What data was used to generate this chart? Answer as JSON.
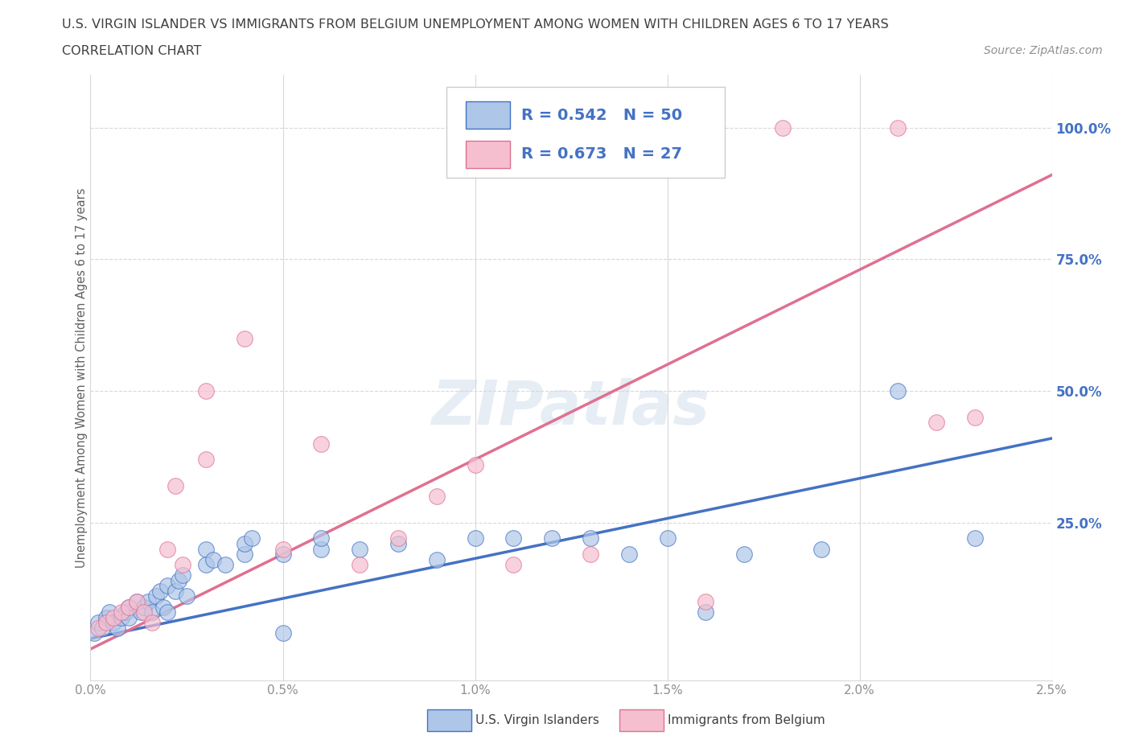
{
  "title_line1": "U.S. VIRGIN ISLANDER VS IMMIGRANTS FROM BELGIUM UNEMPLOYMENT AMONG WOMEN WITH CHILDREN AGES 6 TO 17 YEARS",
  "title_line2": "CORRELATION CHART",
  "source_text": "Source: ZipAtlas.com",
  "ylabel": "Unemployment Among Women with Children Ages 6 to 17 years",
  "xlim": [
    0.0,
    0.025
  ],
  "ylim": [
    -0.05,
    1.1
  ],
  "xtick_labels": [
    "0.0%",
    "0.5%",
    "1.0%",
    "1.5%",
    "2.0%",
    "2.5%"
  ],
  "xtick_values": [
    0.0,
    0.005,
    0.01,
    0.015,
    0.02,
    0.025
  ],
  "ytick_labels": [
    "25.0%",
    "50.0%",
    "75.0%",
    "100.0%"
  ],
  "ytick_values": [
    0.25,
    0.5,
    0.75,
    1.0
  ],
  "blue_color": "#aec6e8",
  "blue_line_color": "#4472c4",
  "pink_color": "#f5bfd0",
  "pink_line_color": "#e07090",
  "blue_R": "0.542",
  "blue_N": "50",
  "pink_R": "0.673",
  "pink_N": "27",
  "legend_label_blue": "U.S. Virgin Islanders",
  "legend_label_pink": "Immigrants from Belgium",
  "watermark": "ZIPatlas",
  "blue_scatter_x": [
    0.0001,
    0.0002,
    0.0003,
    0.0004,
    0.0005,
    0.0006,
    0.0007,
    0.0008,
    0.0009,
    0.001,
    0.001,
    0.0012,
    0.0013,
    0.0014,
    0.0015,
    0.0016,
    0.0017,
    0.0018,
    0.0019,
    0.002,
    0.002,
    0.0022,
    0.0023,
    0.0024,
    0.0025,
    0.003,
    0.003,
    0.0032,
    0.0035,
    0.004,
    0.004,
    0.0042,
    0.005,
    0.005,
    0.006,
    0.006,
    0.007,
    0.008,
    0.009,
    0.01,
    0.011,
    0.012,
    0.013,
    0.014,
    0.015,
    0.016,
    0.017,
    0.019,
    0.021,
    0.023
  ],
  "blue_scatter_y": [
    0.04,
    0.06,
    0.05,
    0.07,
    0.08,
    0.06,
    0.05,
    0.07,
    0.08,
    0.09,
    0.07,
    0.1,
    0.08,
    0.09,
    0.1,
    0.08,
    0.11,
    0.12,
    0.09,
    0.08,
    0.13,
    0.12,
    0.14,
    0.15,
    0.11,
    0.2,
    0.17,
    0.18,
    0.17,
    0.19,
    0.21,
    0.22,
    0.04,
    0.19,
    0.2,
    0.22,
    0.2,
    0.21,
    0.18,
    0.22,
    0.22,
    0.22,
    0.22,
    0.19,
    0.22,
    0.08,
    0.19,
    0.2,
    0.5,
    0.22
  ],
  "pink_scatter_x": [
    0.0002,
    0.0004,
    0.0006,
    0.0008,
    0.001,
    0.0012,
    0.0014,
    0.0016,
    0.002,
    0.0022,
    0.0024,
    0.003,
    0.003,
    0.004,
    0.005,
    0.006,
    0.007,
    0.008,
    0.009,
    0.01,
    0.011,
    0.013,
    0.016,
    0.018,
    0.021,
    0.022,
    0.023
  ],
  "pink_scatter_y": [
    0.05,
    0.06,
    0.07,
    0.08,
    0.09,
    0.1,
    0.08,
    0.06,
    0.2,
    0.32,
    0.17,
    0.37,
    0.5,
    0.6,
    0.2,
    0.4,
    0.17,
    0.22,
    0.3,
    0.36,
    0.17,
    0.19,
    0.1,
    1.0,
    1.0,
    0.44,
    0.45
  ],
  "blue_trend_x": [
    0.0,
    0.025
  ],
  "blue_trend_y": [
    0.03,
    0.41
  ],
  "pink_trend_x": [
    0.0,
    0.025
  ],
  "pink_trend_y": [
    0.01,
    0.91
  ],
  "background_color": "#ffffff",
  "grid_color": "#d8d8d8",
  "title_color": "#404040",
  "axis_label_color": "#606060",
  "tick_label_color": "#909090",
  "right_ytick_color": "#4472c4"
}
